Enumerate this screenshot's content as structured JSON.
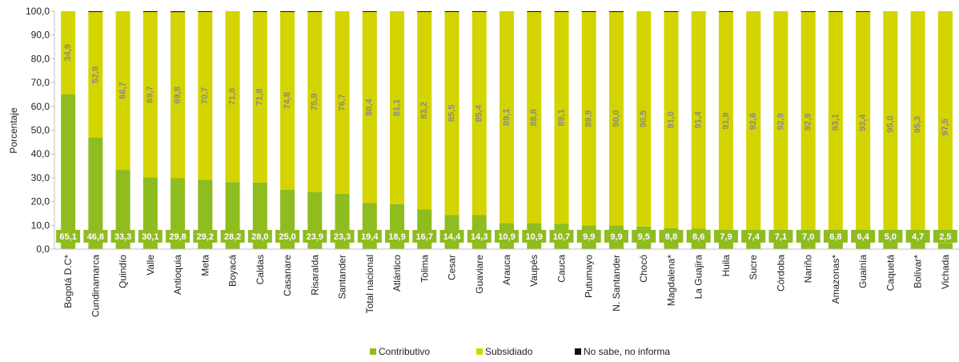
{
  "chart_data": {
    "type": "bar",
    "stacked": true,
    "ylabel": "Porcentaje",
    "ylim": [
      0,
      100
    ],
    "yticks": [
      "0,0",
      "10,0",
      "20,0",
      "30,0",
      "40,0",
      "50,0",
      "60,0",
      "70,0",
      "80,0",
      "90,0",
      "100,0"
    ],
    "categories": [
      "Bogotá D.C*",
      "Cundinamarca",
      "Quindío",
      "Valle",
      "Antioquia",
      "Meta",
      "Boyacá",
      "Caldas",
      "Casanare",
      "Risaralda",
      "Santander",
      "Total nacional",
      "Atlántico",
      "Tolima",
      "Cesar",
      "Guaviare",
      "Arauca",
      "Vaupés",
      "Cauca",
      "Putumayo",
      "N. Santander",
      "Chocó",
      "Magdalena*",
      "La Guajira",
      "Huila",
      "Sucre",
      "Córdoba",
      "Nariño",
      "Amazonas*",
      "Guainía",
      "Caquetá",
      "Bolívar*",
      "Vichada"
    ],
    "series": [
      {
        "name": "Contributivo",
        "color": "#8fbc1f",
        "values": [
          65.1,
          46.8,
          33.3,
          30.1,
          29.8,
          29.2,
          28.2,
          28.0,
          25.0,
          23.9,
          23.3,
          19.4,
          18.9,
          16.7,
          14.4,
          14.3,
          10.9,
          10.9,
          10.7,
          9.9,
          9.9,
          9.5,
          8.8,
          8.6,
          7.9,
          7.4,
          7.1,
          7.0,
          6.8,
          6.4,
          5.0,
          4.7,
          2.5
        ],
        "labels": [
          "65,1",
          "46,8",
          "33,3",
          "30,1",
          "29,8",
          "29,2",
          "28,2",
          "28,0",
          "25,0",
          "23,9",
          "23,3",
          "19,4",
          "18,9",
          "16,7",
          "14,4",
          "14,3",
          "10,9",
          "10,9",
          "10,7",
          "9,9",
          "9,9",
          "9,5",
          "8,8",
          "8,6",
          "7,9",
          "7,4",
          "7,1",
          "7,0",
          "6,8",
          "6,4",
          "5,0",
          "4,7",
          "2,5"
        ]
      },
      {
        "name": "Subsidiado",
        "color": "#d4d400",
        "values": [
          34.9,
          52.9,
          66.7,
          69.7,
          69.8,
          70.7,
          71.8,
          71.8,
          74.8,
          75.9,
          76.7,
          80.4,
          81.1,
          83.2,
          85.5,
          85.4,
          89.1,
          88.8,
          89.1,
          89.9,
          90.0,
          90.5,
          91.0,
          91.4,
          91.9,
          92.6,
          92.9,
          92.9,
          93.1,
          93.4,
          95.0,
          95.3,
          97.5
        ],
        "labels": [
          "34,9",
          "52,9",
          "66,7",
          "69,7",
          "69,8",
          "70,7",
          "71,8",
          "71,8",
          "74,8",
          "75,9",
          "76,7",
          "80,4",
          "81,1",
          "83,2",
          "85,5",
          "85,4",
          "89,1",
          "88,8",
          "89,1",
          "89,9",
          "90,0",
          "90,5",
          "91,0",
          "91,4",
          "91,9",
          "92,6",
          "92,9",
          "92,9",
          "93,1",
          "93,4",
          "95,0",
          "95,3",
          "97,5"
        ]
      },
      {
        "name": "No sabe, no informa",
        "color": "#111111",
        "values": [
          0,
          0.3,
          0,
          0.2,
          0.4,
          0.1,
          0,
          0.2,
          0.2,
          0.2,
          0,
          0.2,
          0,
          0.1,
          0.1,
          0.3,
          0,
          0.3,
          0.2,
          0.2,
          0.1,
          0,
          0.2,
          0,
          0.2,
          0,
          0,
          0.1,
          0.1,
          0.2,
          0,
          0,
          0
        ]
      }
    ],
    "legend_position": "bottom",
    "grid": false
  }
}
